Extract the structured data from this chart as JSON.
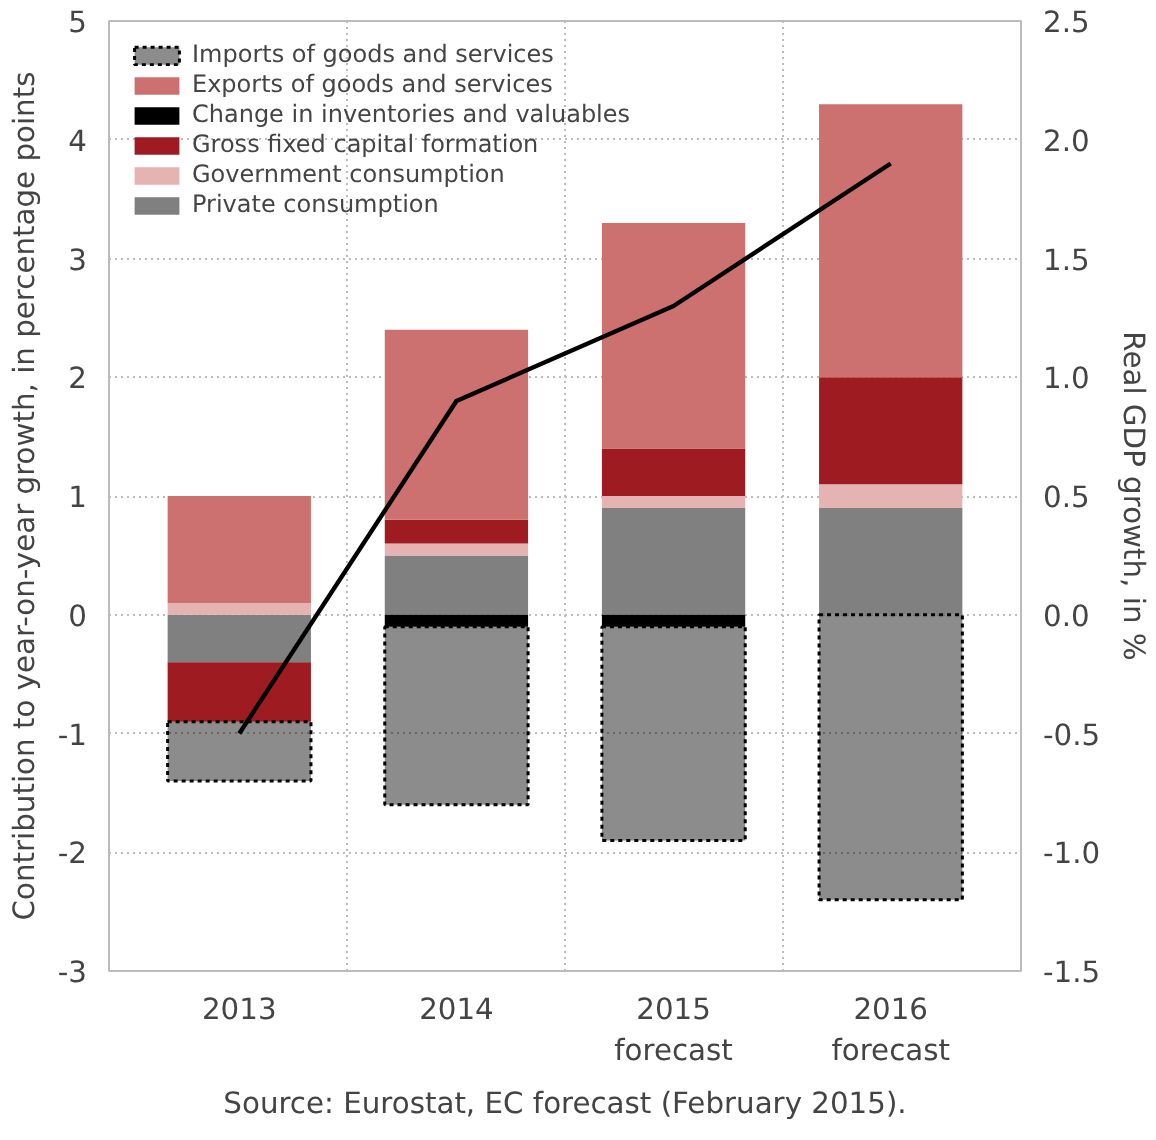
{
  "chart_data": {
    "type": "bar",
    "stacked": true,
    "categories": [
      "2013",
      "2014",
      "2015\nforecast",
      "2016\nforecast"
    ],
    "series": [
      {
        "name": "Private consumption",
        "color": "#808080",
        "values": [
          -0.4,
          0.5,
          0.9,
          0.9
        ]
      },
      {
        "name": "Government consumption",
        "color": "#e6b3b3",
        "values": [
          0.1,
          0.1,
          0.1,
          0.2
        ]
      },
      {
        "name": "Gross fixed capital formation",
        "color": "#9e1b22",
        "values": [
          -0.5,
          0.2,
          0.4,
          0.9
        ]
      },
      {
        "name": "Change in inventories and valuables",
        "color": "#000000",
        "values": [
          0,
          -0.1,
          -0.1,
          0
        ]
      },
      {
        "name": "Exports of goods and services",
        "color": "#cc7070",
        "values": [
          0.9,
          1.6,
          1.9,
          2.3
        ]
      },
      {
        "name": "Imports of goods and services",
        "color": "#000000",
        "values": [
          -0.5,
          -1.5,
          -1.8,
          -2.4
        ]
      },
      {
        "type": "line",
        "axis": "y2",
        "color": "#000000",
        "values": [
          -0.5,
          0.9,
          1.3,
          1.9
        ]
      }
    ],
    "ylabel": "Contribution to year-on-year growth, in percentage points",
    "y2label": "Real GDP growth, in %",
    "ylim": [
      -3,
      5
    ],
    "yticks": [
      -3,
      -2,
      -1,
      0,
      1,
      2,
      3,
      4,
      5
    ],
    "y2lim": [
      -1.5,
      2.5
    ],
    "y2ticks": [
      -1.5,
      {
        "value": -1,
        "label": "-1.0"
      },
      -0.5,
      {
        "value": 0,
        "label": "0.0"
      },
      0.5,
      {
        "value": 1,
        "label": "1.0"
      },
      1.5,
      {
        "value": 2,
        "label": "2.0"
      },
      2.5
    ],
    "grid": true,
    "legend": "top left",
    "marker": "none",
    "line_style": "solid",
    "annotations": [
      "Source: Eurostat, EC forecast (February 2015)."
    ]
  }
}
